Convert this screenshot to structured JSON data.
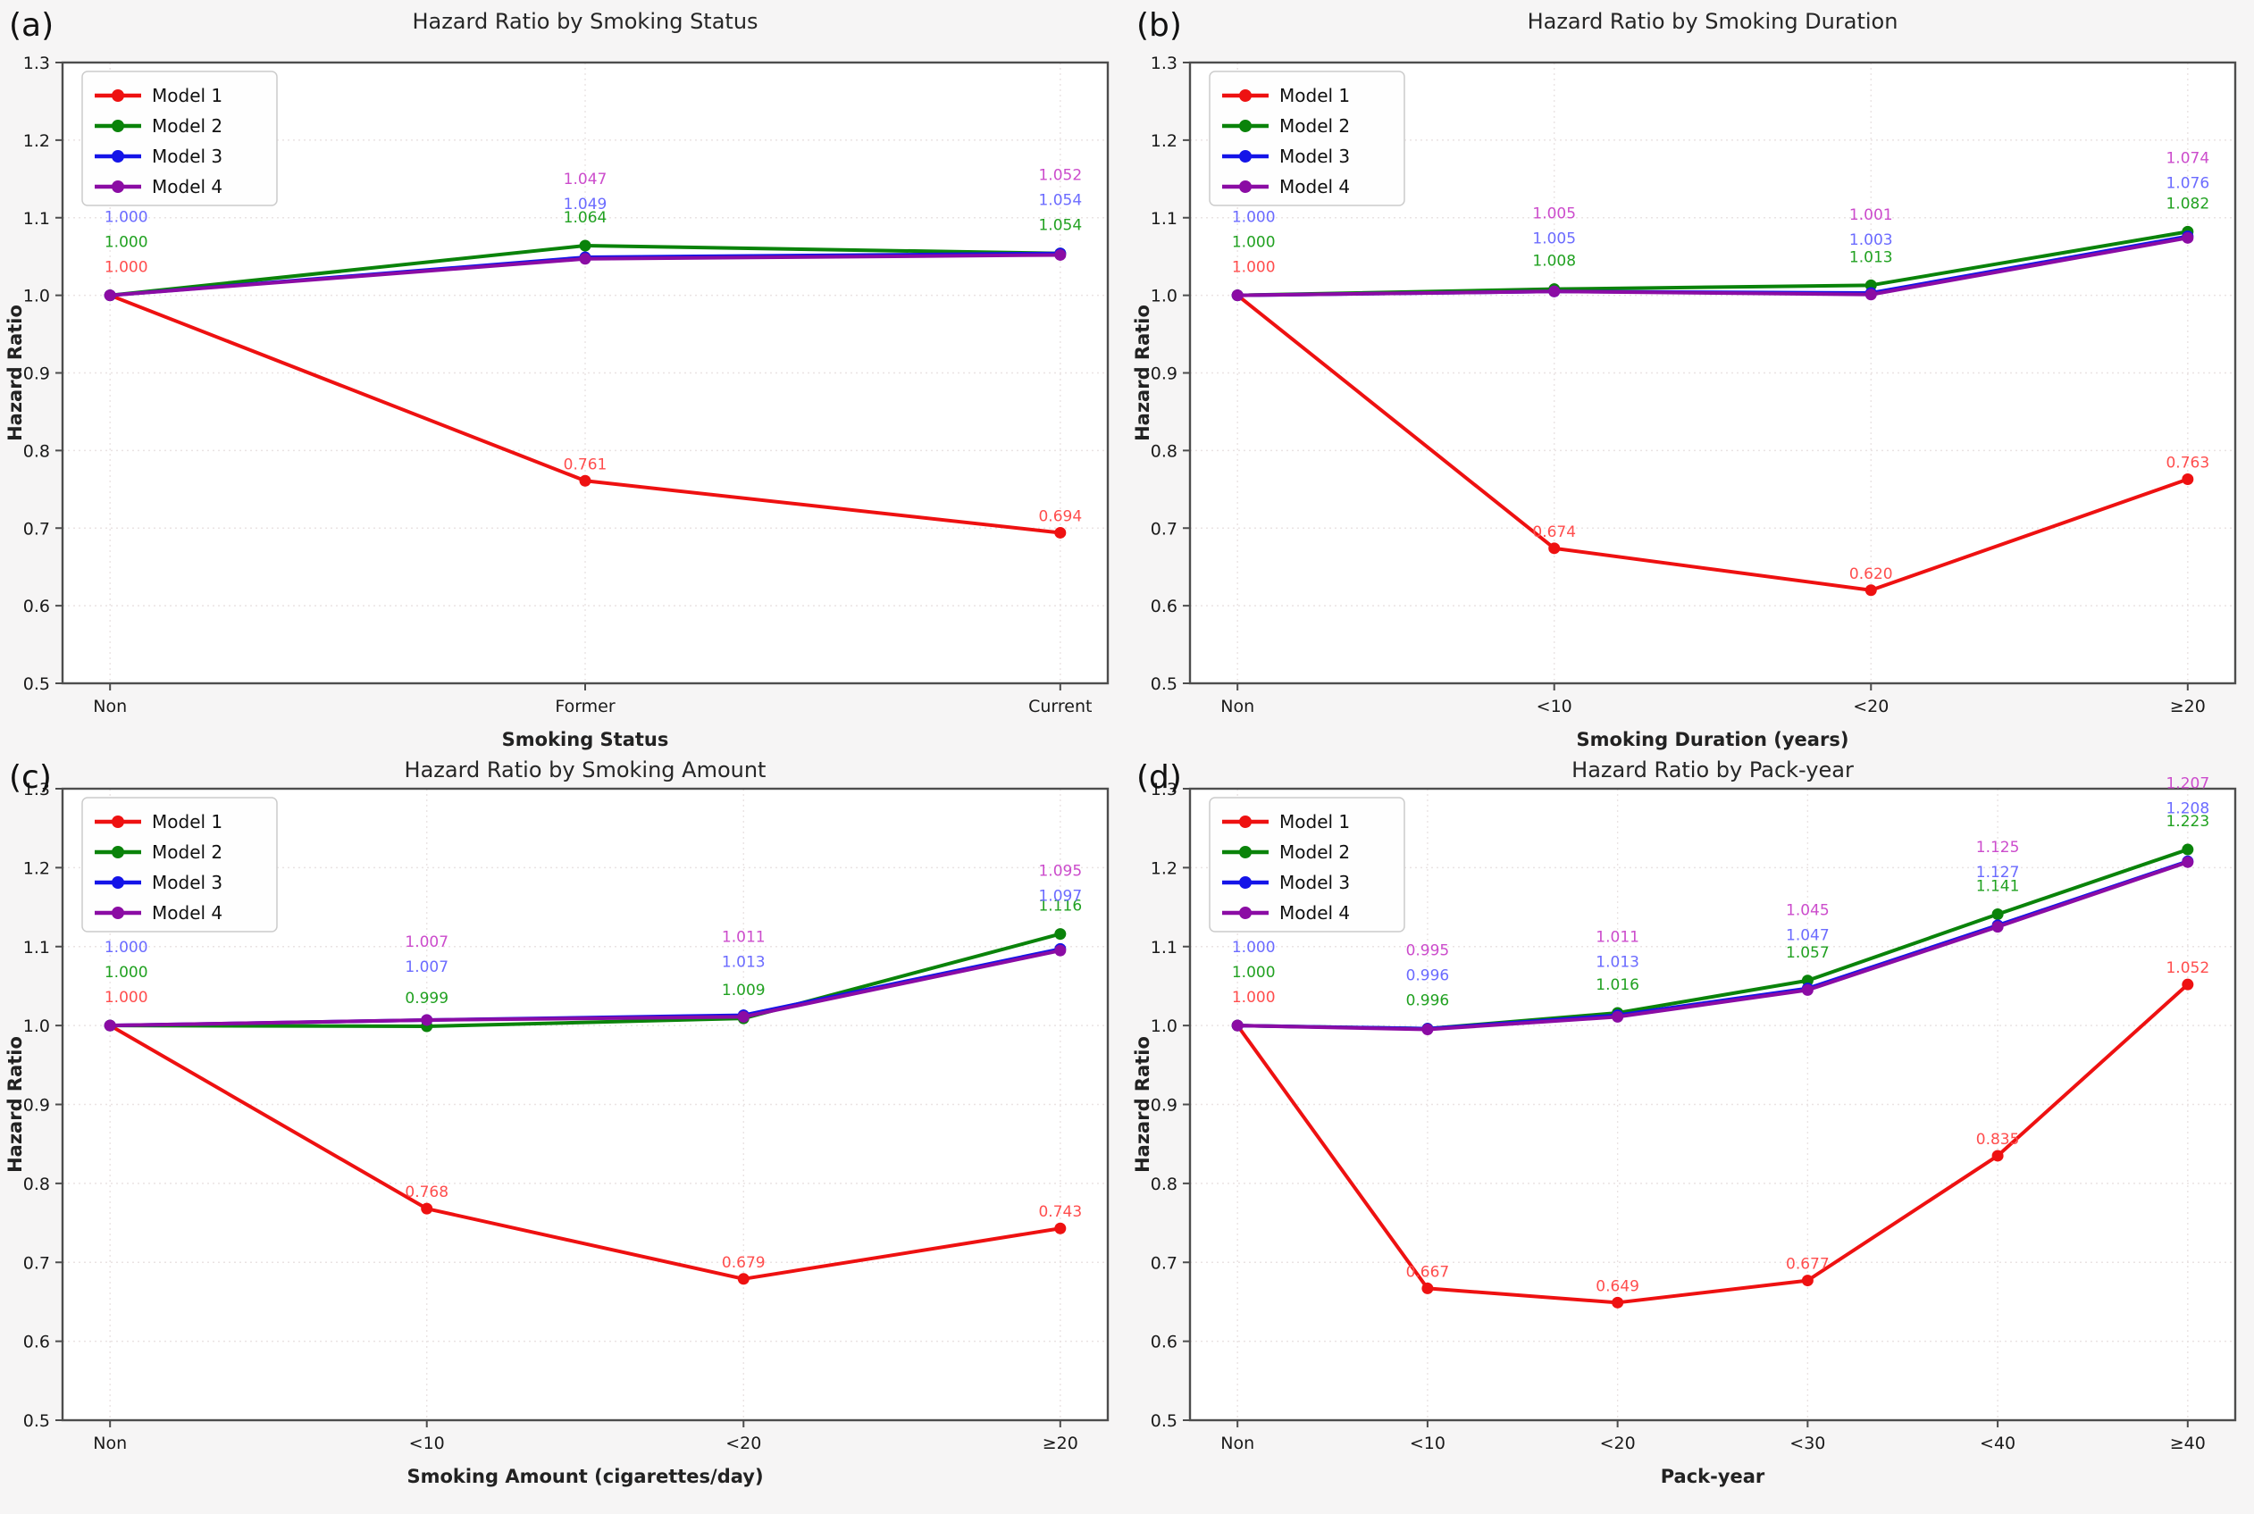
{
  "figure": {
    "background_color": "#f6f5f5",
    "plot_background_color": "#ffffff",
    "grid_color": "#eae3e3",
    "spine_color": "#4d4d4d",
    "tick_text_color": "#1a1a1a",
    "title_color": "#262626"
  },
  "chart_data": [
    {
      "panel_label": "(a)",
      "type": "line",
      "title": "Hazard Ratio by Smoking Status",
      "xlabel": "Smoking Status",
      "ylabel": "Hazard Ratio",
      "categories": [
        "Non",
        "Former",
        "Current"
      ],
      "ylim": [
        0.5,
        1.3
      ],
      "yticks": [
        0.5,
        0.6,
        0.7,
        0.8,
        0.9,
        1.0,
        1.1,
        1.2,
        1.3
      ],
      "grid": true,
      "legend_position": "upper left",
      "series": [
        {
          "name": "Model 1",
          "color": "#ee1111",
          "label_color": "#ff4d4d",
          "values": [
            1.0,
            0.761,
            0.694
          ]
        },
        {
          "name": "Model 2",
          "color": "#0a830a",
          "label_color": "#21a121",
          "values": [
            1.0,
            1.064,
            1.054
          ]
        },
        {
          "name": "Model 3",
          "color": "#1414e8",
          "label_color": "#6b6bff",
          "values": [
            1.0,
            1.049,
            1.054
          ]
        },
        {
          "name": "Model 4",
          "color": "#8b0ca4",
          "label_color": "#cc4ccc",
          "values": [
            1.0,
            1.047,
            1.052
          ]
        }
      ]
    },
    {
      "panel_label": "(b)",
      "type": "line",
      "title": "Hazard Ratio by Smoking Duration",
      "xlabel": "Smoking Duration (years)",
      "ylabel": "Hazard Ratio",
      "categories": [
        "Non",
        "<10",
        "<20",
        "≥20"
      ],
      "ylim": [
        0.5,
        1.3
      ],
      "yticks": [
        0.5,
        0.6,
        0.7,
        0.8,
        0.9,
        1.0,
        1.1,
        1.2,
        1.3
      ],
      "grid": true,
      "legend_position": "upper left",
      "series": [
        {
          "name": "Model 1",
          "color": "#ee1111",
          "label_color": "#ff4d4d",
          "values": [
            1.0,
            0.674,
            0.62,
            0.763
          ]
        },
        {
          "name": "Model 2",
          "color": "#0a830a",
          "label_color": "#21a121",
          "values": [
            1.0,
            1.008,
            1.013,
            1.082
          ]
        },
        {
          "name": "Model 3",
          "color": "#1414e8",
          "label_color": "#6b6bff",
          "values": [
            1.0,
            1.005,
            1.003,
            1.076
          ]
        },
        {
          "name": "Model 4",
          "color": "#8b0ca4",
          "label_color": "#cc4ccc",
          "values": [
            1.0,
            1.005,
            1.001,
            1.074
          ]
        }
      ]
    },
    {
      "panel_label": "(c)",
      "type": "line",
      "title": "Hazard Ratio by Smoking Amount",
      "xlabel": "Smoking Amount (cigarettes/day)",
      "ylabel": "Hazard Ratio",
      "categories": [
        "Non",
        "<10",
        "<20",
        "≥20"
      ],
      "ylim": [
        0.5,
        1.3
      ],
      "yticks": [
        0.5,
        0.6,
        0.7,
        0.8,
        0.9,
        1.0,
        1.1,
        1.2,
        1.3
      ],
      "grid": true,
      "legend_position": "upper left",
      "series": [
        {
          "name": "Model 1",
          "color": "#ee1111",
          "label_color": "#ff4d4d",
          "values": [
            1.0,
            0.768,
            0.679,
            0.743
          ]
        },
        {
          "name": "Model 2",
          "color": "#0a830a",
          "label_color": "#21a121",
          "values": [
            1.0,
            0.999,
            1.009,
            1.116
          ]
        },
        {
          "name": "Model 3",
          "color": "#1414e8",
          "label_color": "#6b6bff",
          "values": [
            1.0,
            1.007,
            1.013,
            1.097
          ]
        },
        {
          "name": "Model 4",
          "color": "#8b0ca4",
          "label_color": "#cc4ccc",
          "values": [
            1.0,
            1.007,
            1.011,
            1.095
          ]
        }
      ]
    },
    {
      "panel_label": "(d)",
      "type": "line",
      "title": "Hazard Ratio by Pack-year",
      "xlabel": "Pack-year",
      "ylabel": "Hazard Ratio",
      "categories": [
        "Non",
        "<10",
        "<20",
        "<30",
        "<40",
        "≥40"
      ],
      "ylim": [
        0.5,
        1.3
      ],
      "yticks": [
        0.5,
        0.6,
        0.7,
        0.8,
        0.9,
        1.0,
        1.1,
        1.2,
        1.3
      ],
      "grid": true,
      "legend_position": "upper left",
      "series": [
        {
          "name": "Model 1",
          "color": "#ee1111",
          "label_color": "#ff4d4d",
          "values": [
            1.0,
            0.667,
            0.649,
            0.677,
            0.835,
            1.052
          ]
        },
        {
          "name": "Model 2",
          "color": "#0a830a",
          "label_color": "#21a121",
          "values": [
            1.0,
            0.996,
            1.016,
            1.057,
            1.141,
            1.223
          ]
        },
        {
          "name": "Model 3",
          "color": "#1414e8",
          "label_color": "#6b6bff",
          "values": [
            1.0,
            0.996,
            1.013,
            1.047,
            1.127,
            1.208
          ]
        },
        {
          "name": "Model 4",
          "color": "#8b0ca4",
          "label_color": "#cc4ccc",
          "values": [
            1.0,
            0.995,
            1.011,
            1.045,
            1.125,
            1.207
          ]
        }
      ]
    }
  ]
}
